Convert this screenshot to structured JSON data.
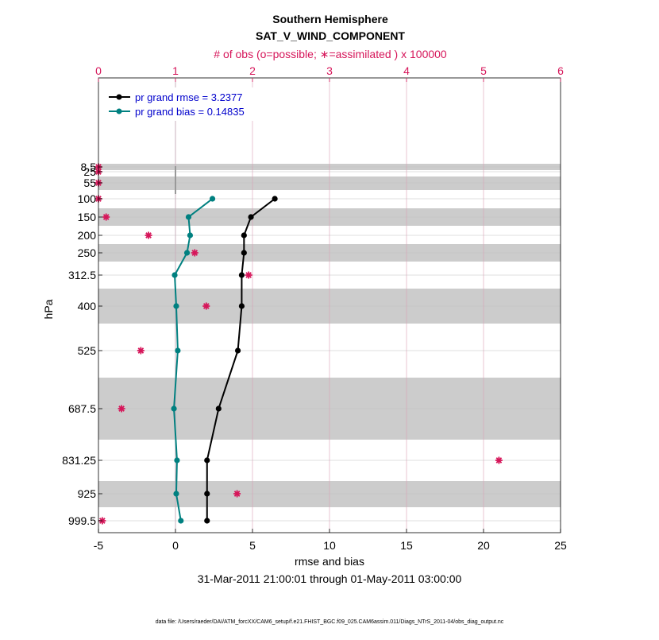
{
  "chart_data": {
    "type": "line",
    "title": "Southern Hemisphere",
    "subtitle": "SAT_V_WIND_COMPONENT",
    "top_axis_label": "# of obs (o=possible; ∗=assimilated ) x 100000",
    "xlabel": "rmse and bias",
    "ylabel": "hPa",
    "date_range": "31-Mar-2011 21:00:01 through 01-May-2011 03:00:00",
    "footer": "data file: /Users/raeder/DAI/ATM_forcXX/CAM6_setup/f.e21.FHIST_BGC.f09_025.CAM6assim.011/Diags_NTrS_2011-04/obs_diag_output.nc",
    "xlim": [
      -5,
      25
    ],
    "x_ticks": [
      -5,
      0,
      5,
      10,
      15,
      20,
      25
    ],
    "top_xlim": [
      0,
      6
    ],
    "top_ticks": [
      0,
      1,
      2,
      3,
      4,
      5,
      6
    ],
    "levels": [
      "8.5",
      "25",
      "55",
      "100",
      "150",
      "200",
      "250",
      "312.5",
      "400",
      "525",
      "687.5",
      "831.25",
      "925",
      "999.5"
    ],
    "shaded_levels": [
      "8.5",
      "55",
      "150",
      "250",
      "400",
      "687.5",
      "925"
    ],
    "series": [
      {
        "name": "pr grand rmse",
        "legend": "pr grand rmse = 3.2377",
        "color": "#000000",
        "levels": [
          "100",
          "150",
          "200",
          "250",
          "312.5",
          "400",
          "525",
          "687.5",
          "831.25",
          "925",
          "999.5"
        ],
        "values": [
          6.45,
          4.9,
          4.45,
          4.45,
          4.3,
          4.3,
          4.05,
          2.8,
          2.05,
          2.05,
          2.05
        ]
      },
      {
        "name": "pr grand bias",
        "legend": "pr grand bias = 0.14835",
        "color": "#008080",
        "levels": [
          "100",
          "150",
          "200",
          "250",
          "312.5",
          "400",
          "525",
          "687.5",
          "831.25",
          "925",
          "999.5"
        ],
        "values": [
          2.4,
          0.85,
          0.95,
          0.75,
          -0.05,
          0.05,
          0.15,
          -0.1,
          0.1,
          0.05,
          0.35
        ]
      }
    ],
    "obs_assimilated": {
      "color": "#d6165a",
      "levels": [
        "8.5",
        "25",
        "55",
        "100",
        "150",
        "200",
        "250",
        "312.5",
        "400",
        "525",
        "687.5",
        "831.25",
        "925",
        "999.5"
      ],
      "values": [
        0.0,
        0.0,
        0.0,
        0.0,
        0.1,
        0.65,
        1.25,
        1.95,
        1.4,
        0.55,
        0.3,
        5.2,
        1.8,
        0.05
      ]
    },
    "legend_text_color": "#0000cc",
    "accent_color": "#d6165a"
  }
}
